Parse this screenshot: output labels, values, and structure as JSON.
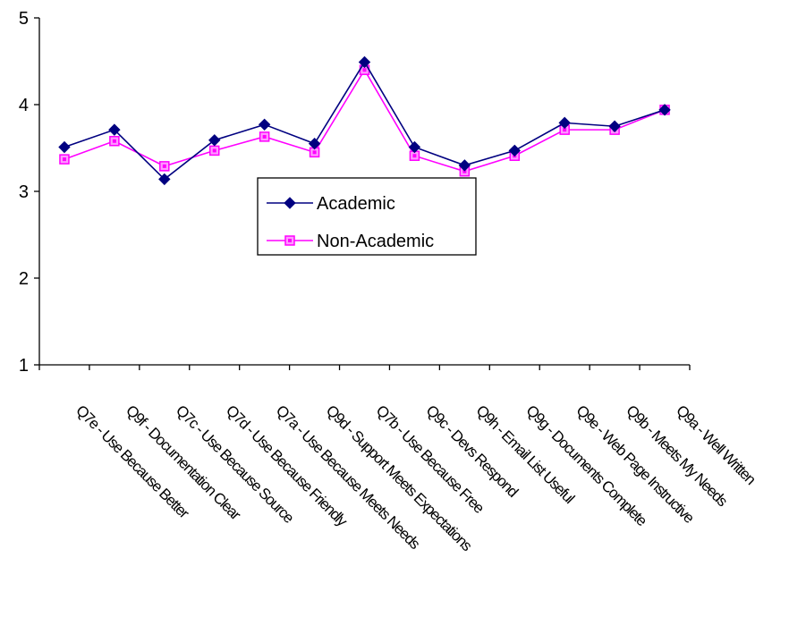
{
  "chart_data": {
    "type": "line",
    "categories": [
      "Q7e - Use Because Better",
      "Q9f - Documentation Clear",
      "Q7c - Use Because Source",
      "Q7d - Use Because Friendly",
      "Q7a - Use Because Meets Needs",
      "Q9d - Support Meets Expectations",
      "Q7b - Use Because Free",
      "Q9c - Devs Respond",
      "Q9h - Email List Useful",
      "Q9g - Documents Complete",
      "Q9e - Web Page Instructive",
      "Q9b - Meets My Needs",
      "Q9a - Well Written"
    ],
    "series": [
      {
        "name": "Academic",
        "color": "#000080",
        "marker": "diamond",
        "values": [
          3.51,
          3.71,
          3.14,
          3.59,
          3.77,
          3.55,
          4.49,
          3.51,
          3.3,
          3.47,
          3.79,
          3.75,
          3.94
        ]
      },
      {
        "name": "Non-Academic",
        "color": "#ff00ff",
        "marker": "square",
        "values": [
          3.37,
          3.58,
          3.29,
          3.47,
          3.63,
          3.45,
          4.4,
          3.41,
          3.23,
          3.41,
          3.71,
          3.71,
          3.94
        ]
      }
    ],
    "ylim": [
      1,
      5
    ],
    "yticks": [
      "1",
      "2",
      "3",
      "4",
      "5"
    ],
    "grid": false,
    "legend_position": "center"
  }
}
